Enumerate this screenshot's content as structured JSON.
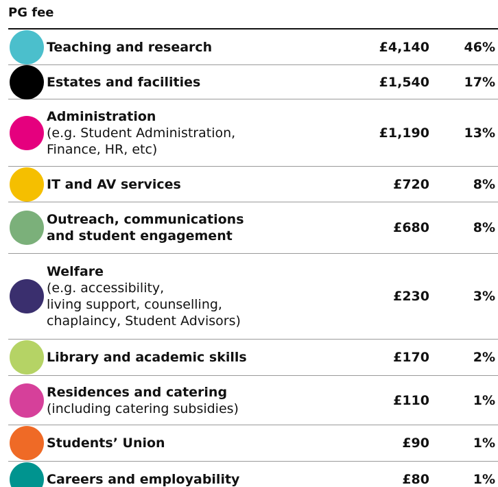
{
  "header": {
    "title": "PG fee"
  },
  "rows": [
    {
      "name": [
        "Teaching and research"
      ],
      "amount": "£4,140",
      "percent": "46%",
      "color": "#4bbfcc"
    },
    {
      "name": [
        "Estates and facilities"
      ],
      "amount": "£1,540",
      "percent": "17%",
      "color": "#000000"
    },
    {
      "name": [
        "Administration"
      ],
      "note": [
        "(e.g. Student Administration,",
        "Finance, HR, etc)"
      ],
      "amount": "£1,190",
      "percent": "13%",
      "color": "#e5007e"
    },
    {
      "name": [
        "IT and AV services"
      ],
      "amount": "£720",
      "percent": "8%",
      "color": "#f5bf00"
    },
    {
      "name": [
        "Outreach, communications",
        "and student engagement"
      ],
      "amount": "£680",
      "percent": "8%",
      "color": "#7bb07a"
    },
    {
      "name": [
        "Welfare"
      ],
      "note": [
        "(e.g. accessibility,",
        "living support, counselling,",
        "chaplaincy, Student Advisors)"
      ],
      "amount": "£230",
      "percent": "3%",
      "color": "#3a2f6e"
    },
    {
      "name": [
        "Library and academic skills"
      ],
      "amount": "£170",
      "percent": "2%",
      "color": "#b5d365"
    },
    {
      "name": [
        "Residences and catering"
      ],
      "note": [
        "(including catering subsidies)"
      ],
      "amount": "£110",
      "percent": "1%",
      "color": "#d6409a"
    },
    {
      "name": [
        "Students’ Union"
      ],
      "amount": "£90",
      "percent": "1%",
      "color": "#ef6a26"
    },
    {
      "name": [
        "Careers and employability"
      ],
      "amount": "£80",
      "percent": "1%",
      "color": "#00948f"
    }
  ]
}
